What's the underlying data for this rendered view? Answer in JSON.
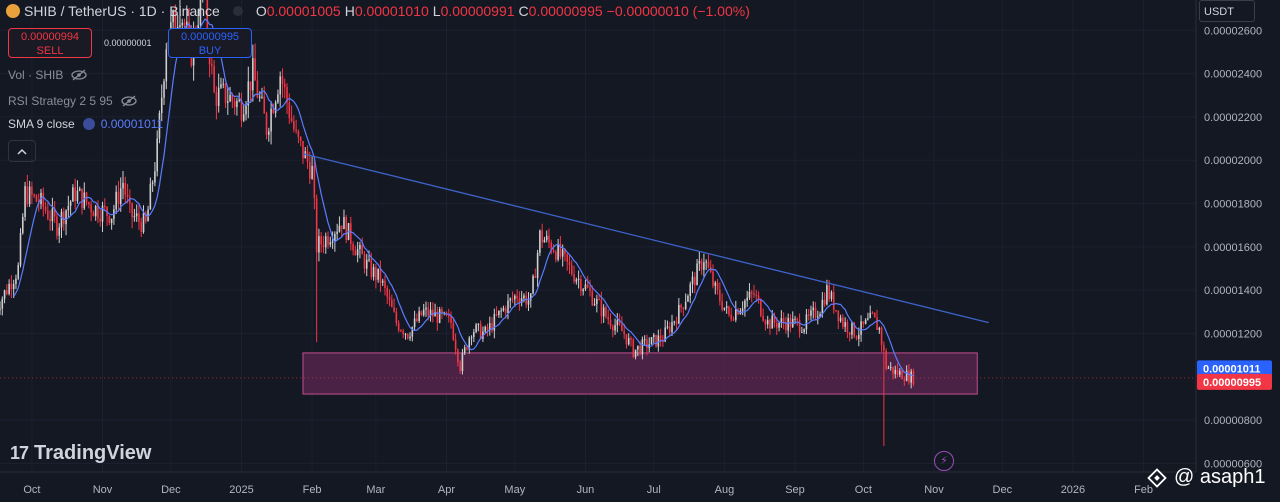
{
  "header": {
    "symbol": "SHIB / TetherUS · 1D · Binance",
    "open_label": "O",
    "open": "0.00001005",
    "high_label": "H",
    "high": "0.00001010",
    "low_label": "L",
    "low": "0.00000991",
    "close_label": "C",
    "close": "0.00000995",
    "change": "−0.00000010 (−1.00%)"
  },
  "trade": {
    "sell_price": "0.00000994",
    "sell_label": "SELL",
    "spread": "0.00000001",
    "buy_price": "0.00000995",
    "buy_label": "BUY"
  },
  "indicators": {
    "vol": "Vol · SHIB",
    "rsi": "RSI Strategy 2 5 95",
    "sma": "SMA 9 close",
    "sma_value": "0.00001011"
  },
  "currency": "USDT",
  "branding": {
    "logo": "TradingView",
    "handle": "@ asaph1"
  },
  "colors": {
    "background": "#141823",
    "up": "#cfcfcf",
    "down": "#f23645",
    "sma": "#5b7cff",
    "trendline": "#3d63c9",
    "zone_fill": "#5c2552",
    "zone_border": "#c24e8e"
  },
  "chart_data": {
    "type": "candlestick",
    "y_ticks": [
      "0.00002600",
      "0.00002400",
      "0.00002200",
      "0.00002000",
      "0.00001800",
      "0.00001600",
      "0.00001400",
      "0.00001200",
      "0.00000800",
      "0.00000600"
    ],
    "x_ticks": [
      "Oct",
      "Nov",
      "Dec",
      "2025",
      "Feb",
      "Mar",
      "Apr",
      "May",
      "Jun",
      "Jul",
      "Aug",
      "Sep",
      "Oct",
      "Nov",
      "Dec",
      "2026",
      "Feb"
    ],
    "ylim": [
      5.6e-06,
      2.74e-05
    ],
    "close_path": [
      [
        "2024-09-15",
        1.31e-05
      ],
      [
        "2024-09-25",
        1.5e-05
      ],
      [
        "2024-09-28",
        1.85e-05
      ],
      [
        "2024-10-05",
        1.8e-05
      ],
      [
        "2024-10-12",
        1.7e-05
      ],
      [
        "2024-10-20",
        1.85e-05
      ],
      [
        "2024-10-28",
        1.78e-05
      ],
      [
        "2024-11-05",
        1.75e-05
      ],
      [
        "2024-11-10",
        1.9e-05
      ],
      [
        "2024-11-13",
        1.75e-05
      ],
      [
        "2024-11-20",
        1.7e-05
      ],
      [
        "2024-11-25",
        2.05e-05
      ],
      [
        "2024-11-29",
        2.55e-05
      ],
      [
        "2024-12-05",
        2.7e-05
      ],
      [
        "2024-12-10",
        2.5e-05
      ],
      [
        "2024-12-15",
        2.8e-05
      ],
      [
        "2024-12-20",
        2.3e-05
      ],
      [
        "2024-12-25",
        2.3e-05
      ],
      [
        "2025-01-01",
        2.25e-05
      ],
      [
        "2025-01-06",
        2.4e-05
      ],
      [
        "2025-01-12",
        2.15e-05
      ],
      [
        "2025-01-18",
        2.4e-05
      ],
      [
        "2025-01-25",
        2.1e-05
      ],
      [
        "2025-02-01",
        1.95e-05
      ],
      [
        "2025-02-03",
        1.6e-05
      ],
      [
        "2025-02-08",
        1.65e-05
      ],
      [
        "2025-02-14",
        1.72e-05
      ],
      [
        "2025-02-20",
        1.6e-05
      ],
      [
        "2025-02-26",
        1.5e-05
      ],
      [
        "2025-03-03",
        1.45e-05
      ],
      [
        "2025-03-10",
        1.25e-05
      ],
      [
        "2025-03-15",
        1.2e-05
      ],
      [
        "2025-03-22",
        1.3e-05
      ],
      [
        "2025-03-28",
        1.28e-05
      ],
      [
        "2025-04-03",
        1.25e-05
      ],
      [
        "2025-04-07",
        1.05e-05
      ],
      [
        "2025-04-12",
        1.22e-05
      ],
      [
        "2025-04-18",
        1.2e-05
      ],
      [
        "2025-04-25",
        1.3e-05
      ],
      [
        "2025-05-02",
        1.38e-05
      ],
      [
        "2025-05-08",
        1.35e-05
      ],
      [
        "2025-05-12",
        1.65e-05
      ],
      [
        "2025-05-18",
        1.6e-05
      ],
      [
        "2025-05-25",
        1.5e-05
      ],
      [
        "2025-06-02",
        1.4e-05
      ],
      [
        "2025-06-10",
        1.28e-05
      ],
      [
        "2025-06-18",
        1.2e-05
      ],
      [
        "2025-06-22",
        1.12e-05
      ],
      [
        "2025-06-28",
        1.15e-05
      ],
      [
        "2025-07-05",
        1.18e-05
      ],
      [
        "2025-07-12",
        1.3e-05
      ],
      [
        "2025-07-20",
        1.48e-05
      ],
      [
        "2025-07-23",
        1.55e-05
      ],
      [
        "2025-07-28",
        1.4e-05
      ],
      [
        "2025-08-03",
        1.28e-05
      ],
      [
        "2025-08-10",
        1.35e-05
      ],
      [
        "2025-08-14",
        1.38e-05
      ],
      [
        "2025-08-20",
        1.25e-05
      ],
      [
        "2025-08-28",
        1.25e-05
      ],
      [
        "2025-09-05",
        1.24e-05
      ],
      [
        "2025-09-12",
        1.32e-05
      ],
      [
        "2025-09-15",
        1.4e-05
      ],
      [
        "2025-09-22",
        1.25e-05
      ],
      [
        "2025-09-28",
        1.2e-05
      ],
      [
        "2025-10-05",
        1.27e-05
      ],
      [
        "2025-10-08",
        1.22e-05
      ],
      [
        "2025-10-11",
        1.05e-05
      ],
      [
        "2025-10-15",
        1.02e-05
      ],
      [
        "2025-10-19",
        1.01e-05
      ],
      [
        "2025-10-23",
        9.95e-06
      ]
    ],
    "notable_wicks": [
      [
        "2025-02-03",
        1.16e-05
      ],
      [
        "2025-10-10",
        6.8e-06
      ],
      [
        "2024-12-05",
        2.9e-05
      ]
    ],
    "sma_value": 1.011e-05,
    "last_price": 9.95e-06,
    "trendline": {
      "from": [
        "2025-01-28",
        2.03e-05
      ],
      "to": [
        "2025-11-25",
        1.25e-05
      ]
    },
    "support_zone": {
      "from": "2025-01-28",
      "to": "2025-11-20",
      "top": 1.11e-05,
      "bottom": 9.2e-06
    },
    "price_labels": [
      "0.00001011",
      "0.00000995"
    ]
  }
}
